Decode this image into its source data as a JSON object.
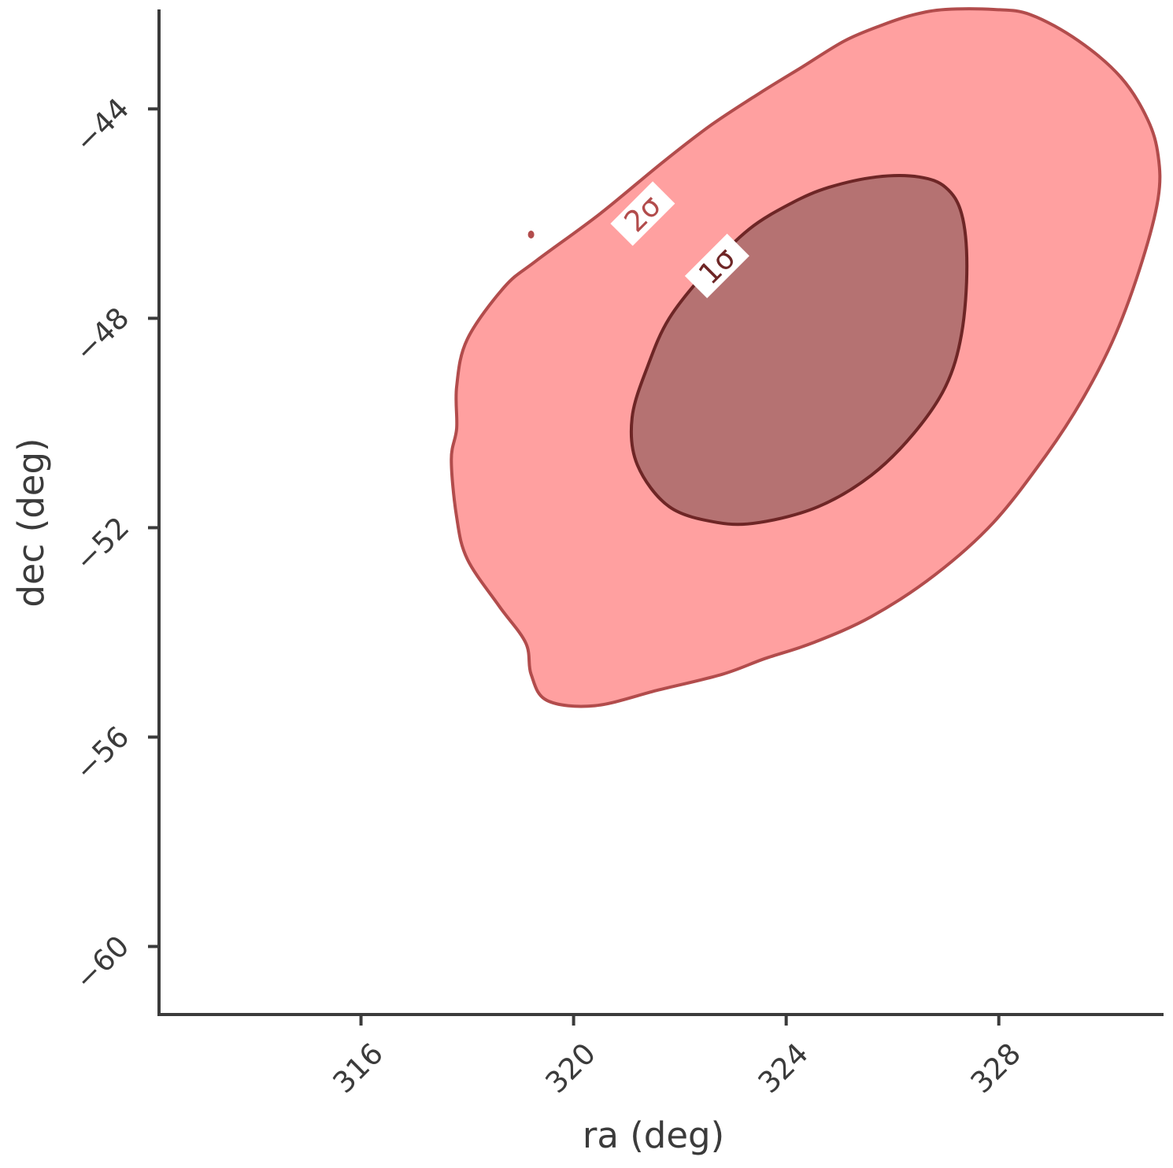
{
  "chart_data": {
    "type": "contour",
    "title": "",
    "xlabel": "ra (deg)",
    "ylabel": "dec (deg)",
    "xlim": [
      312.2,
      331.1
    ],
    "ylim": [
      -61.3,
      -42.1
    ],
    "xticks": [
      316,
      320,
      324,
      328
    ],
    "yticks": [
      -44,
      -48,
      -52,
      -56,
      -60
    ],
    "xtick_labels": [
      "316",
      "320",
      "324",
      "328"
    ],
    "ytick_labels": [
      "−44",
      "−48",
      "−52",
      "−56",
      "−60"
    ],
    "grid": false,
    "colors": {
      "axis": "#3b3b3b",
      "outer_fill": "#ff8888",
      "outer_edge": "#b24c4c",
      "inner_fill": "#b57272",
      "inner_edge": "#6e2626",
      "label_2sigma": "#b24c4c",
      "label_1sigma": "#6e2626"
    },
    "contours": [
      {
        "level": "2σ",
        "label_at": [
          321.3,
          -46.0
        ],
        "points": [
          [
            319.5,
            -55.3
          ],
          [
            320.4,
            -55.4
          ],
          [
            321.6,
            -55.1
          ],
          [
            322.8,
            -54.8
          ],
          [
            323.6,
            -54.5
          ],
          [
            324.5,
            -54.2
          ],
          [
            325.6,
            -53.7
          ],
          [
            326.8,
            -52.9
          ],
          [
            327.9,
            -51.9
          ],
          [
            328.9,
            -50.6
          ],
          [
            329.6,
            -49.5
          ],
          [
            330.2,
            -48.3
          ],
          [
            330.7,
            -46.9
          ],
          [
            331.0,
            -45.7
          ],
          [
            331.0,
            -44.9
          ],
          [
            330.8,
            -44.2
          ],
          [
            330.3,
            -43.4
          ],
          [
            329.5,
            -42.7
          ],
          [
            328.6,
            -42.2
          ],
          [
            327.9,
            -42.1
          ],
          [
            327.0,
            -42.1
          ],
          [
            326.4,
            -42.2
          ],
          [
            325.8,
            -42.4
          ],
          [
            325.1,
            -42.7
          ],
          [
            324.3,
            -43.2
          ],
          [
            323.5,
            -43.7
          ],
          [
            322.6,
            -44.3
          ],
          [
            321.7,
            -45.0
          ],
          [
            320.5,
            -46.0
          ],
          [
            319.3,
            -46.9
          ],
          [
            318.7,
            -47.4
          ],
          [
            318.0,
            -48.4
          ],
          [
            317.8,
            -49.3
          ],
          [
            317.8,
            -50.1
          ],
          [
            317.7,
            -50.7
          ],
          [
            317.8,
            -51.8
          ],
          [
            318.0,
            -52.6
          ],
          [
            318.6,
            -53.5
          ],
          [
            319.1,
            -54.2
          ],
          [
            319.2,
            -54.8
          ]
        ]
      },
      {
        "level": "1σ",
        "label_at": [
          322.7,
          -47.0
        ],
        "points": [
          [
            321.2,
            -50.8
          ],
          [
            321.8,
            -51.6
          ],
          [
            322.7,
            -51.9
          ],
          [
            323.5,
            -51.9
          ],
          [
            324.6,
            -51.6
          ],
          [
            325.6,
            -51.0
          ],
          [
            326.4,
            -50.2
          ],
          [
            327.0,
            -49.3
          ],
          [
            327.3,
            -48.3
          ],
          [
            327.4,
            -47.0
          ],
          [
            327.3,
            -46.0
          ],
          [
            327.0,
            -45.5
          ],
          [
            326.5,
            -45.3
          ],
          [
            325.7,
            -45.3
          ],
          [
            324.8,
            -45.5
          ],
          [
            324.1,
            -45.8
          ],
          [
            323.3,
            -46.3
          ],
          [
            322.5,
            -47.1
          ],
          [
            321.8,
            -48.0
          ],
          [
            321.4,
            -48.9
          ],
          [
            321.1,
            -49.9
          ]
        ]
      }
    ],
    "stray_point": [
      319.2,
      -46.4
    ]
  }
}
